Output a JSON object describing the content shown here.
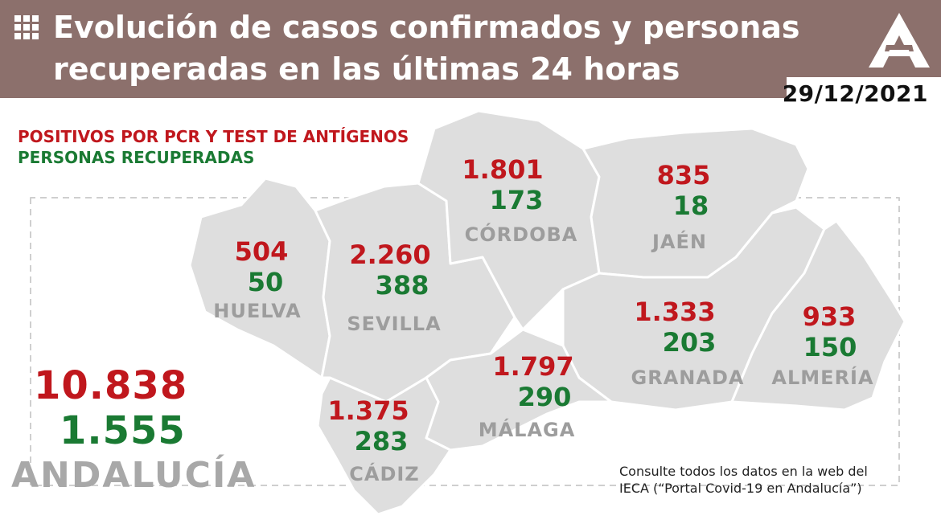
{
  "header": {
    "title_line1": "Evolución de casos confirmados y personas",
    "title_line2": "recuperadas en las últimas 24 horas",
    "date": "29/12/2021",
    "grid_icon": "grid-icon",
    "logo_icon": "junta-andalucia-logo"
  },
  "legend": {
    "positives": "POSITIVOS POR PCR Y TEST DE ANTÍGENOS",
    "recovered": "PERSONAS RECUPERADAS"
  },
  "colors": {
    "header_bg": "#8c706c",
    "positives": "#c0171d",
    "recovered": "#1a7a33",
    "map_fill": "#dedede",
    "label_grey": "#9d9d9d"
  },
  "provinces": {
    "huelva": {
      "name": "HUELVA",
      "positives": "504",
      "recovered": "50"
    },
    "sevilla": {
      "name": "SEVILLA",
      "positives": "2.260",
      "recovered": "388"
    },
    "cordoba": {
      "name": "CÓRDOBA",
      "positives": "1.801",
      "recovered": "173"
    },
    "jaen": {
      "name": "JAÉN",
      "positives": "835",
      "recovered": "18"
    },
    "granada": {
      "name": "GRANADA",
      "positives": "1.333",
      "recovered": "203"
    },
    "almeria": {
      "name": "ALMERÍA",
      "positives": "933",
      "recovered": "150"
    },
    "malaga": {
      "name": "MÁLAGA",
      "positives": "1.797",
      "recovered": "290"
    },
    "cadiz": {
      "name": "CÁDIZ",
      "positives": "1.375",
      "recovered": "283"
    }
  },
  "total": {
    "name": "ANDALUCÍA",
    "positives": "10.838",
    "recovered": "1.555"
  },
  "footer": {
    "note_line1": "Consulte todos los datos en la web del",
    "note_line2": "IECA (“Portal Covid-19 en Andalucía”)"
  }
}
